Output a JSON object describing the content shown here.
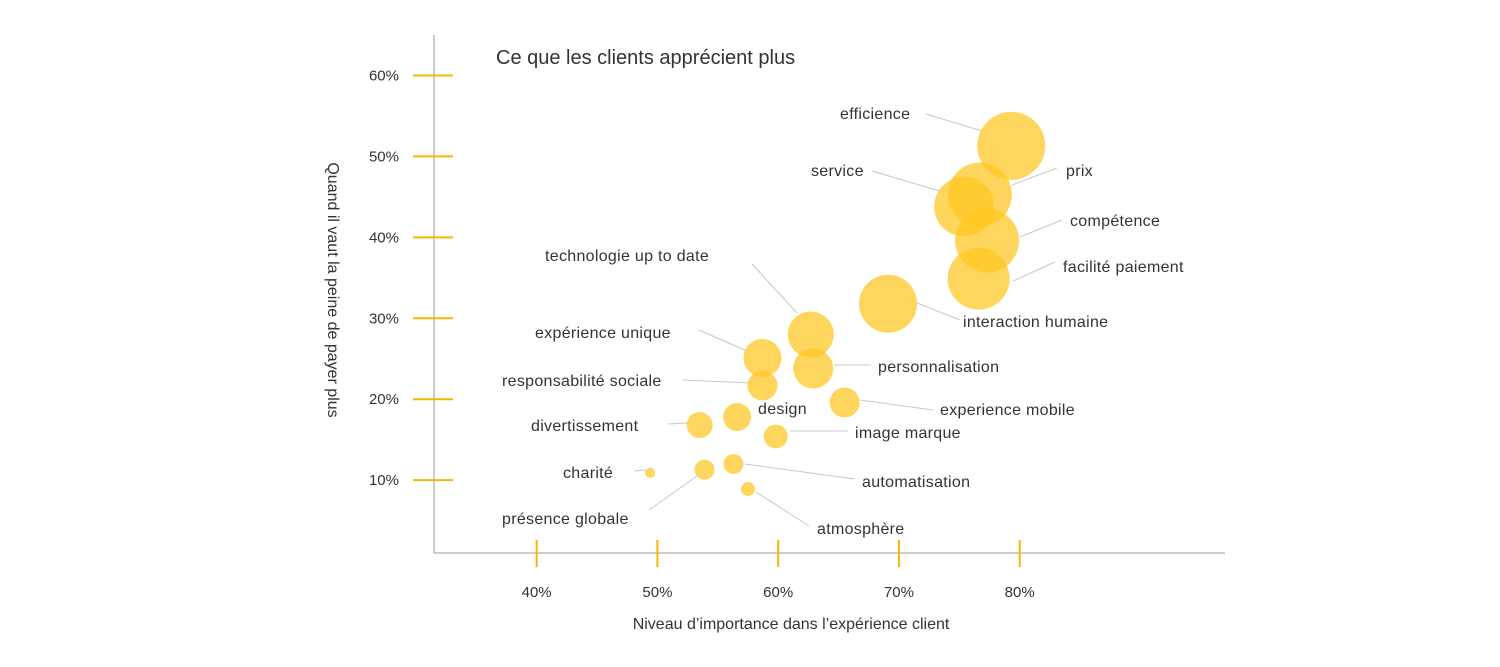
{
  "colors": {
    "bubble": "#FFC61E",
    "tick": "#F5B800",
    "axis": "#999999",
    "leader": "#C8C8C8",
    "text": "#333333"
  },
  "chart_data": {
    "type": "scatter",
    "title": "Ce que les clients apprécient plus",
    "xlabel": "Niveau d’importance dans l’expérience client",
    "ylabel": "Quand il vaut la peine de payer plus",
    "xlim": [
      31.5,
      97
    ],
    "ylim": [
      1,
      65
    ],
    "x_ticks": [
      40,
      50,
      60,
      70,
      80
    ],
    "y_ticks": [
      10,
      20,
      30,
      40,
      50,
      60
    ],
    "x_tick_labels": [
      "40%",
      "50%",
      "60%",
      "70%",
      "80%"
    ],
    "y_tick_labels": [
      "10%",
      "20%",
      "30%",
      "40%",
      "50%",
      "60%"
    ],
    "grid": false,
    "legend": "none",
    "points": [
      {
        "label": "efficience",
        "x": 79.3,
        "y": 51.3,
        "size": 34
      },
      {
        "label": "prix",
        "x": 76.7,
        "y": 45.3,
        "size": 32
      },
      {
        "label": "service",
        "x": 75.4,
        "y": 43.8,
        "size": 30
      },
      {
        "label": "compétence",
        "x": 77.3,
        "y": 39.6,
        "size": 32
      },
      {
        "label": "facilité paiement",
        "x": 76.6,
        "y": 34.9,
        "size": 31
      },
      {
        "label": "interaction humaine",
        "x": 69.1,
        "y": 31.8,
        "size": 29
      },
      {
        "label": "technologie up to date",
        "x": 62.7,
        "y": 28.0,
        "size": 23
      },
      {
        "label": "expérience unique",
        "x": 58.7,
        "y": 25.1,
        "size": 19
      },
      {
        "label": "personnalisation",
        "x": 62.9,
        "y": 23.8,
        "size": 20
      },
      {
        "label": "responsabilité sociale",
        "x": 58.7,
        "y": 21.7,
        "size": 15
      },
      {
        "label": "experience mobile",
        "x": 65.5,
        "y": 19.6,
        "size": 15
      },
      {
        "label": "design",
        "x": 56.6,
        "y": 17.8,
        "size": 14
      },
      {
        "label": "divertissement",
        "x": 53.5,
        "y": 16.8,
        "size": 13
      },
      {
        "label": "image marque",
        "x": 59.8,
        "y": 15.4,
        "size": 12
      },
      {
        "label": "automatisation",
        "x": 56.3,
        "y": 12.0,
        "size": 10
      },
      {
        "label": "présence globale",
        "x": 53.9,
        "y": 11.3,
        "size": 10
      },
      {
        "label": "charité",
        "x": 49.4,
        "y": 10.9,
        "size": 5
      },
      {
        "label": "atmosphère",
        "x": 57.5,
        "y": 8.9,
        "size": 7
      }
    ]
  }
}
